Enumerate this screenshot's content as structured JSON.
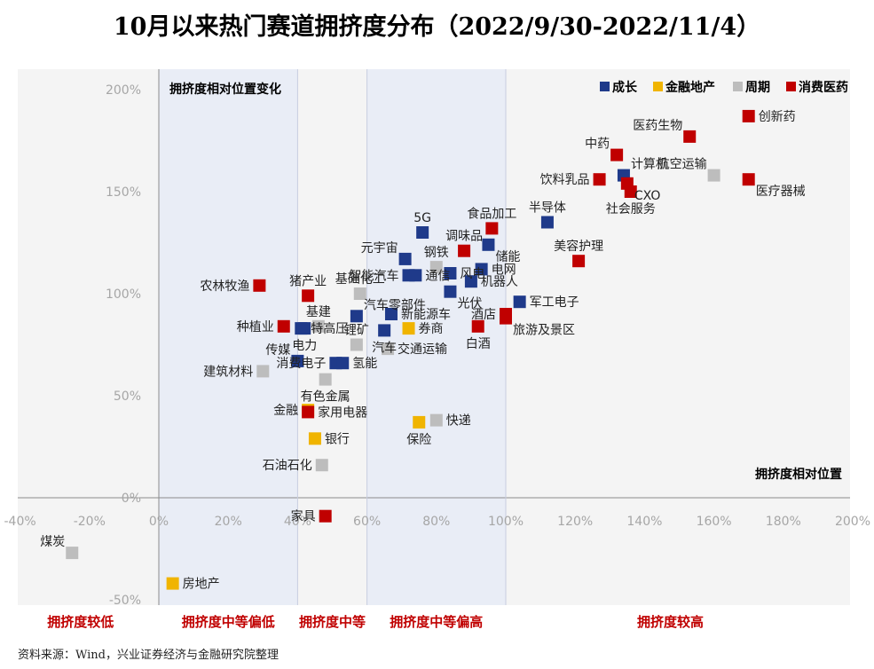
{
  "title": "10月以来热门赛道拥挤度分布（2022/9/30-2022/11/4）",
  "source": "资料来源：Wind，兴业证券经济与金融研究院整理",
  "chart_data": {
    "type": "scatter",
    "x_axis": {
      "title": "拥挤度相对位置",
      "min": -0.4,
      "max": 2.0,
      "step": 0.2,
      "tick_labels": [
        "-40%",
        "-20%",
        "0%",
        "20%",
        "40%",
        "60%",
        "80%",
        "100%",
        "120%",
        "140%",
        "160%",
        "180%",
        "200%"
      ]
    },
    "y_axis": {
      "title": "拥挤度相对位置变化",
      "min": -0.5,
      "max": 2.0,
      "step": 0.5,
      "tick_labels": [
        "-50%",
        "0%",
        "50%",
        "100%",
        "150%",
        "200%"
      ]
    },
    "colors": {
      "成长": "#1f3a8a",
      "金融地产": "#f0b400",
      "周期": "#bdbdbd",
      "消费医药": "#c00000",
      "zone_fill": "#e9edf6",
      "plot_bg": "#f4f4f4",
      "zone_label": "#c00000"
    },
    "legend": [
      {
        "name": "成长",
        "label": "成长"
      },
      {
        "name": "金融地产",
        "label": "金融地产"
      },
      {
        "name": "周期",
        "label": "周期"
      },
      {
        "name": "消费医药",
        "label": "消费医药"
      }
    ],
    "zones": [
      {
        "label": "拥挤度较低",
        "from": -0.4,
        "to": 0.0,
        "shaded": false
      },
      {
        "label": "拥挤度中等偏低",
        "from": 0.0,
        "to": 0.4,
        "shaded": true
      },
      {
        "label": "拥挤度中等",
        "from": 0.4,
        "to": 0.6,
        "shaded": false
      },
      {
        "label": "拥挤度中等偏高",
        "from": 0.6,
        "to": 1.0,
        "shaded": true
      },
      {
        "label": "拥挤度较高",
        "from": 1.0,
        "to": 2.0,
        "shaded": false
      }
    ],
    "points": [
      {
        "name": "创新药",
        "group": "消费医药",
        "x": 1.7,
        "y": 1.87,
        "pos": "r"
      },
      {
        "name": "医药生物",
        "group": "消费医药",
        "x": 1.53,
        "y": 1.77,
        "pos": "tl"
      },
      {
        "name": "中药",
        "group": "消费医药",
        "x": 1.32,
        "y": 1.68,
        "pos": "tl"
      },
      {
        "name": "计算机",
        "group": "成长",
        "x": 1.34,
        "y": 1.58,
        "pos": "tr"
      },
      {
        "name": "航空运输",
        "group": "周期",
        "x": 1.6,
        "y": 1.58,
        "pos": "tl"
      },
      {
        "name": "饮料乳品",
        "group": "消费医药",
        "x": 1.27,
        "y": 1.56,
        "pos": "l"
      },
      {
        "name": "医疗器械",
        "group": "消费医药",
        "x": 1.7,
        "y": 1.56,
        "pos": "br"
      },
      {
        "name": "CXO",
        "group": "消费医药",
        "x": 1.35,
        "y": 1.54,
        "pos": "br"
      },
      {
        "name": "社会服务",
        "group": "消费医药",
        "x": 1.36,
        "y": 1.5,
        "pos": "b"
      },
      {
        "name": "半导体",
        "group": "成长",
        "x": 1.12,
        "y": 1.35,
        "pos": "t"
      },
      {
        "name": "食品加工",
        "group": "消费医药",
        "x": 0.96,
        "y": 1.32,
        "pos": "t"
      },
      {
        "name": "5G",
        "group": "成长",
        "x": 0.76,
        "y": 1.3,
        "pos": "t"
      },
      {
        "name": "储能",
        "group": "成长",
        "x": 0.95,
        "y": 1.24,
        "pos": "br"
      },
      {
        "name": "美容护理",
        "group": "消费医药",
        "x": 1.21,
        "y": 1.16,
        "pos": "t"
      },
      {
        "name": "调味品",
        "group": "消费医药",
        "x": 0.88,
        "y": 1.21,
        "pos": "t"
      },
      {
        "name": "元宇宙",
        "group": "成长",
        "x": 0.71,
        "y": 1.17,
        "pos": "tl"
      },
      {
        "name": "钢铁",
        "group": "周期",
        "x": 0.8,
        "y": 1.13,
        "pos": "t"
      },
      {
        "name": "智能汽车",
        "group": "成长",
        "x": 0.72,
        "y": 1.09,
        "pos": "l"
      },
      {
        "name": "通信",
        "group": "成长",
        "x": 0.74,
        "y": 1.09,
        "pos": "r"
      },
      {
        "name": "风电",
        "group": "成长",
        "x": 0.84,
        "y": 1.1,
        "pos": "r"
      },
      {
        "name": "电网",
        "group": "成长",
        "x": 0.93,
        "y": 1.12,
        "pos": "r"
      },
      {
        "name": "机器人",
        "group": "成长",
        "x": 0.9,
        "y": 1.06,
        "pos": "r"
      },
      {
        "name": "农林牧渔",
        "group": "消费医药",
        "x": 0.29,
        "y": 1.04,
        "pos": "l"
      },
      {
        "name": "猪产业",
        "group": "消费医药",
        "x": 0.43,
        "y": 0.99,
        "pos": "t"
      },
      {
        "name": "基础化工",
        "group": "周期",
        "x": 0.58,
        "y": 1.0,
        "pos": "t"
      },
      {
        "name": "汽车零部件",
        "group": "成长",
        "x": 0.57,
        "y": 0.89,
        "pos": "tr"
      },
      {
        "name": "光伏",
        "group": "成长",
        "x": 0.84,
        "y": 1.01,
        "pos": "br"
      },
      {
        "name": "军工电子",
        "group": "成长",
        "x": 1.04,
        "y": 0.96,
        "pos": "r"
      },
      {
        "name": "新能源车",
        "group": "成长",
        "x": 0.67,
        "y": 0.9,
        "pos": "r"
      },
      {
        "name": "酒店",
        "group": "消费医药",
        "x": 1.0,
        "y": 0.9,
        "pos": "l"
      },
      {
        "name": "旅游及景区",
        "group": "消费医药",
        "x": 1.0,
        "y": 0.88,
        "pos": "br"
      },
      {
        "name": "种植业",
        "group": "消费医药",
        "x": 0.36,
        "y": 0.84,
        "pos": "l"
      },
      {
        "name": "基建",
        "group": "周期",
        "x": 0.46,
        "y": 0.84,
        "pos": "t"
      },
      {
        "name": "电力",
        "group": "成长",
        "x": 0.42,
        "y": 0.83,
        "pos": "b"
      },
      {
        "name": "特高压",
        "group": "成长",
        "x": 0.41,
        "y": 0.83,
        "pos": "r"
      },
      {
        "name": "券商",
        "group": "金融地产",
        "x": 0.72,
        "y": 0.83,
        "pos": "r"
      },
      {
        "name": "白酒",
        "group": "消费医药",
        "x": 0.92,
        "y": 0.84,
        "pos": "b"
      },
      {
        "name": "汽车",
        "group": "成长",
        "x": 0.65,
        "y": 0.82,
        "pos": "b"
      },
      {
        "name": "锂矿",
        "group": "周期",
        "x": 0.57,
        "y": 0.75,
        "pos": "t"
      },
      {
        "name": "传媒",
        "group": "成长",
        "x": 0.4,
        "y": 0.67,
        "pos": "tl"
      },
      {
        "name": "交通运输",
        "group": "周期",
        "x": 0.66,
        "y": 0.73,
        "pos": "r"
      },
      {
        "name": "消费电子",
        "group": "成长",
        "x": 0.51,
        "y": 0.66,
        "pos": "l"
      },
      {
        "name": "氢能",
        "group": "成长",
        "x": 0.53,
        "y": 0.66,
        "pos": "r"
      },
      {
        "name": "建筑材料",
        "group": "周期",
        "x": 0.3,
        "y": 0.62,
        "pos": "l"
      },
      {
        "name": "有色金属",
        "group": "周期",
        "x": 0.48,
        "y": 0.58,
        "pos": "b"
      },
      {
        "name": "金融",
        "group": "金融地产",
        "x": 0.43,
        "y": 0.43,
        "pos": "l"
      },
      {
        "name": "家用电器",
        "group": "消费医药",
        "x": 0.43,
        "y": 0.42,
        "pos": "r"
      },
      {
        "name": "保险",
        "group": "金融地产",
        "x": 0.75,
        "y": 0.37,
        "pos": "b"
      },
      {
        "name": "快递",
        "group": "周期",
        "x": 0.8,
        "y": 0.38,
        "pos": "r"
      },
      {
        "name": "银行",
        "group": "金融地产",
        "x": 0.45,
        "y": 0.29,
        "pos": "r"
      },
      {
        "name": "石油石化",
        "group": "周期",
        "x": 0.47,
        "y": 0.16,
        "pos": "l"
      },
      {
        "name": "家具",
        "group": "消费医药",
        "x": 0.48,
        "y": -0.09,
        "pos": "l"
      },
      {
        "name": "煤炭",
        "group": "周期",
        "x": -0.25,
        "y": -0.27,
        "pos": "tl"
      },
      {
        "name": "房地产",
        "group": "金融地产",
        "x": 0.04,
        "y": -0.42,
        "pos": "r"
      }
    ]
  }
}
